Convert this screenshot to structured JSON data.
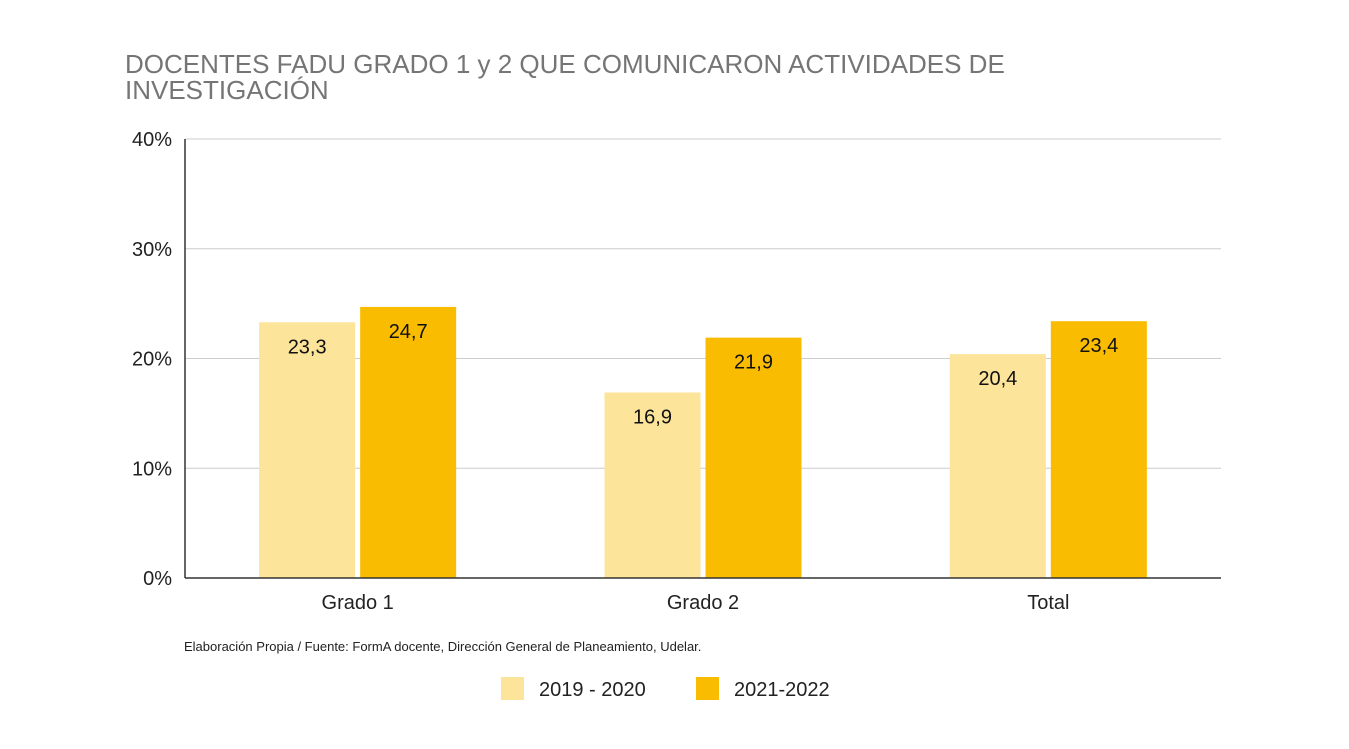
{
  "chart_data": {
    "type": "bar",
    "title_lines": [
      "DOCENTES FADU GRADO 1 y 2 QUE COMUNICARON ACTIVIDADES DE",
      "INVESTIGACIÓN"
    ],
    "categories": [
      "Grado 1",
      "Grado 2",
      "Total"
    ],
    "series": [
      {
        "name": "2019 - 2020",
        "color": "#FCE49A",
        "values": [
          23.3,
          16.9,
          20.4
        ],
        "labels": [
          "23,3",
          "16,9",
          "20,4"
        ]
      },
      {
        "name": "2021-2022",
        "color": "#F9BC00",
        "values": [
          24.7,
          21.9,
          23.4
        ],
        "labels": [
          "24,7",
          "21,9",
          "23,4"
        ]
      }
    ],
    "ylim": [
      0,
      40
    ],
    "yticks": [
      {
        "value": 0,
        "label": "0%"
      },
      {
        "value": 10,
        "label": "10%"
      },
      {
        "value": 20,
        "label": "20%"
      },
      {
        "value": 30,
        "label": "30%"
      },
      {
        "value": 40,
        "label": "40%"
      }
    ],
    "grid": true,
    "legend_position": "bottom",
    "source_note": "Elaboración Propia / Fuente: FormA docente, Dirección General de Planeamiento, Udelar."
  }
}
